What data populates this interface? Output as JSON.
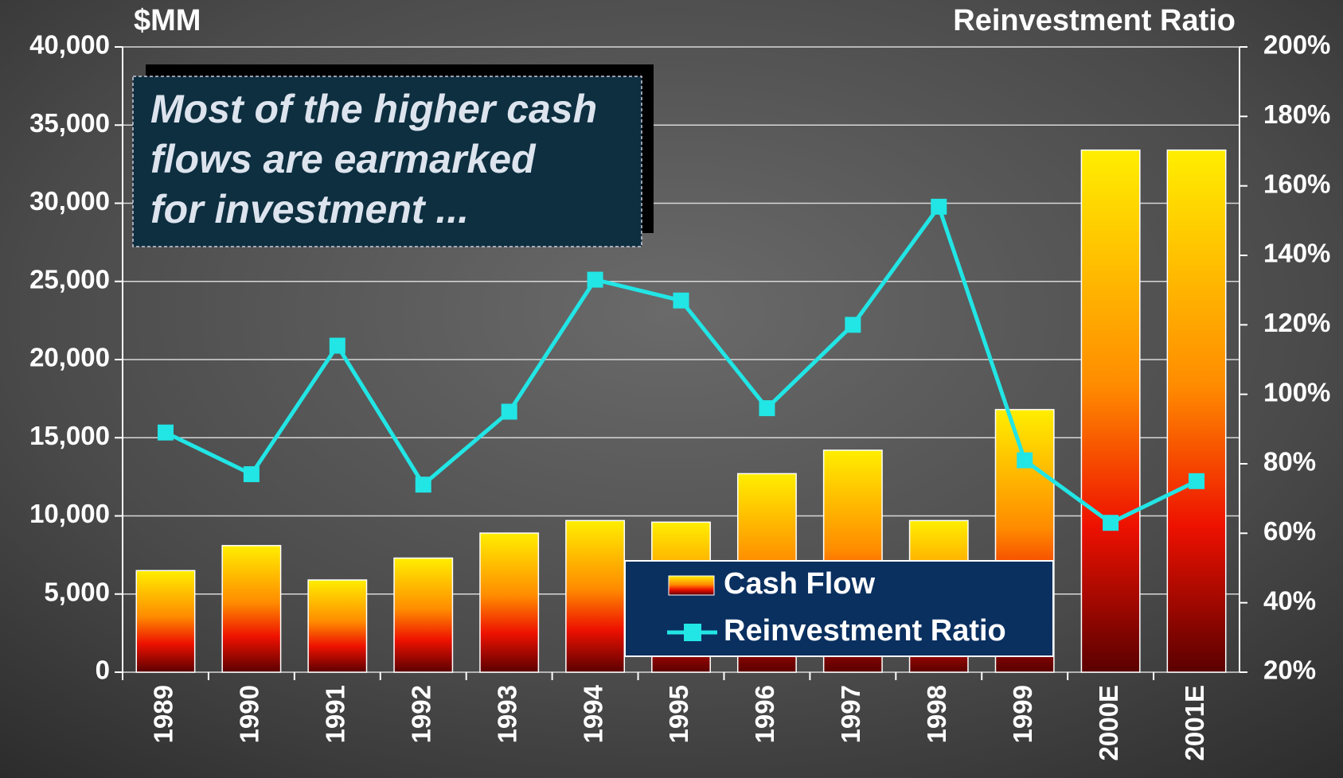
{
  "chart_data": {
    "type": "bar-line",
    "y_axis_label": "$MM",
    "y2_axis_label": "Reinvestment Ratio",
    "annotation": [
      "Most of the higher cash",
      "flows are earmarked",
      "for investment ..."
    ],
    "categories": [
      "1989",
      "1990",
      "1991",
      "1992",
      "1993",
      "1994",
      "1995",
      "1996",
      "1997",
      "1998",
      "1999",
      "2000E",
      "2001E"
    ],
    "series": [
      {
        "name": "Cash Flow",
        "type": "bar",
        "color": "#ff8c00",
        "values": [
          6500,
          8100,
          5900,
          7300,
          8900,
          9700,
          9600,
          12700,
          14200,
          9700,
          16800,
          33400,
          33400
        ]
      },
      {
        "name": "Reinvestment Ratio",
        "type": "line",
        "axis": "y2",
        "color": "#22e5e5",
        "values": [
          89,
          77,
          114,
          74,
          95,
          133,
          127,
          96,
          120,
          154,
          81,
          63,
          75
        ]
      }
    ],
    "ylim": [
      0,
      40000
    ],
    "yticks": [
      0,
      {
        "value": 5000,
        "label": "5,000"
      },
      {
        "value": 10000,
        "label": "10,000"
      },
      {
        "value": 15000,
        "label": "15,000"
      },
      {
        "value": 20000,
        "label": "20,000"
      },
      {
        "value": 25000,
        "label": "25,000"
      },
      {
        "value": 30000,
        "label": "30,000"
      },
      {
        "value": 35000,
        "label": "35,000"
      },
      {
        "value": 40000,
        "label": "40,000"
      }
    ],
    "y2lim": [
      20,
      200
    ],
    "y2ticks": [
      {
        "value": 20,
        "label": "20%"
      },
      {
        "value": 40,
        "label": "40%"
      },
      {
        "value": 60,
        "label": "60%"
      },
      {
        "value": 80,
        "label": "80%"
      },
      {
        "value": 100,
        "label": "100%"
      },
      {
        "value": 120,
        "label": "120%"
      },
      {
        "value": 140,
        "label": "140%"
      },
      {
        "value": 160,
        "label": "160%"
      },
      {
        "value": 180,
        "label": "180%"
      },
      {
        "value": 200,
        "label": "200%"
      }
    ],
    "grid": true
  }
}
